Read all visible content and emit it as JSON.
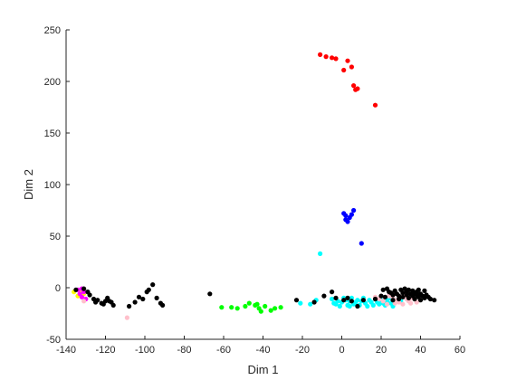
{
  "chart_data": {
    "type": "scatter",
    "title": "",
    "xlabel": "Dim 1",
    "ylabel": "Dim 2",
    "xlim": [
      -140,
      60
    ],
    "ylim": [
      -50,
      250
    ],
    "xticks": [
      "-140",
      "-120",
      "-100",
      "-80",
      "-60",
      "-40",
      "-20",
      "0",
      "20",
      "40",
      "60"
    ],
    "yticks": [
      "-50",
      "0",
      "50",
      "100",
      "150",
      "200",
      "250"
    ],
    "grid": false,
    "legend": "none",
    "series": [
      {
        "color": "#ff0000",
        "points": [
          [
            -11,
            226
          ],
          [
            -8,
            224
          ],
          [
            -5,
            223
          ],
          [
            -3,
            222
          ],
          [
            3,
            220
          ],
          [
            1,
            211
          ],
          [
            5,
            214
          ],
          [
            6,
            196
          ],
          [
            7,
            192
          ],
          [
            8,
            193
          ],
          [
            17,
            177
          ]
        ]
      },
      {
        "color": "#0000ff",
        "points": [
          [
            1,
            72
          ],
          [
            2,
            70
          ],
          [
            3,
            64
          ],
          [
            2,
            66
          ],
          [
            4,
            68
          ],
          [
            6,
            75
          ],
          [
            5,
            71
          ],
          [
            10,
            43
          ]
        ]
      },
      {
        "color": "#00ffff",
        "points": [
          [
            -11,
            33
          ],
          [
            -21,
            -15
          ],
          [
            -16,
            -16
          ],
          [
            -13,
            -12
          ],
          [
            -5,
            -11
          ],
          [
            -3,
            -16
          ],
          [
            -1,
            -18
          ],
          [
            0,
            -14
          ],
          [
            2,
            -12
          ],
          [
            3,
            -17
          ],
          [
            4,
            -13
          ],
          [
            5,
            -10
          ],
          [
            6,
            -16
          ],
          [
            7,
            -14
          ],
          [
            8,
            -12
          ],
          [
            9,
            -17
          ],
          [
            10,
            -13
          ],
          [
            11,
            -10
          ],
          [
            12,
            -15
          ],
          [
            13,
            -18
          ],
          [
            14,
            -12
          ],
          [
            15,
            -14
          ],
          [
            16,
            -17
          ],
          [
            17,
            -11
          ],
          [
            18,
            -14
          ],
          [
            19,
            -16
          ],
          [
            20,
            -12
          ],
          [
            21,
            -15
          ],
          [
            22,
            -17
          ],
          [
            23,
            -13
          ],
          [
            24,
            -10
          ],
          [
            25,
            -15
          ],
          [
            26,
            -18
          ],
          [
            27,
            -12
          ],
          [
            30,
            -13
          ],
          [
            33,
            -11
          ],
          [
            1,
            -10
          ],
          [
            -2,
            -13
          ],
          [
            -4,
            -15
          ],
          [
            4,
            -18
          ]
        ]
      },
      {
        "color": "#00ff00",
        "points": [
          [
            -61,
            -19
          ],
          [
            -56,
            -19
          ],
          [
            -53,
            -20
          ],
          [
            -49,
            -18
          ],
          [
            -47,
            -15
          ],
          [
            -44,
            -17
          ],
          [
            -43,
            -16
          ],
          [
            -42,
            -20
          ],
          [
            -41,
            -23
          ],
          [
            -39,
            -18
          ],
          [
            -36,
            -22
          ],
          [
            -34,
            -20
          ],
          [
            -31,
            -19
          ]
        ]
      },
      {
        "color": "#ffff00",
        "points": [
          [
            -136,
            -4
          ],
          [
            -134,
            -8
          ],
          [
            -132,
            -3
          ],
          [
            -131,
            -6
          ]
        ]
      },
      {
        "color": "#ff00ff",
        "points": [
          [
            -134,
            -2
          ],
          [
            -133,
            -6
          ],
          [
            -132,
            -9
          ],
          [
            -131,
            -4
          ],
          [
            -130,
            -11
          ],
          [
            -132,
            -1
          ]
        ]
      },
      {
        "color": "#ffc0cb",
        "points": [
          [
            -109,
            -29
          ],
          [
            -131,
            -13
          ],
          [
            17,
            -9
          ],
          [
            19,
            -11
          ],
          [
            21,
            -13
          ],
          [
            23,
            -16
          ],
          [
            24,
            -8
          ],
          [
            26,
            -10
          ],
          [
            28,
            -12
          ],
          [
            29,
            -14
          ],
          [
            30,
            -9
          ],
          [
            31,
            -16
          ],
          [
            33,
            -11
          ],
          [
            34,
            -13
          ],
          [
            35,
            -15
          ],
          [
            36,
            -10
          ],
          [
            37,
            -8
          ],
          [
            38,
            -14
          ],
          [
            32,
            -7
          ],
          [
            27,
            -15
          ]
        ]
      },
      {
        "color": "#000000",
        "points": [
          [
            -135,
            -2
          ],
          [
            -131,
            -1
          ],
          [
            -129,
            -4
          ],
          [
            -128,
            -7
          ],
          [
            -126,
            -11
          ],
          [
            -125,
            -14
          ],
          [
            -124,
            -12
          ],
          [
            -122,
            -15
          ],
          [
            -121,
            -16
          ],
          [
            -120,
            -13
          ],
          [
            -119,
            -10
          ],
          [
            -118,
            -13
          ],
          [
            -117,
            -14
          ],
          [
            -116,
            -17
          ],
          [
            -108,
            -18
          ],
          [
            -105,
            -14
          ],
          [
            -103,
            -9
          ],
          [
            -101,
            -11
          ],
          [
            -99,
            -4
          ],
          [
            -98,
            -2
          ],
          [
            -96,
            3
          ],
          [
            -94,
            -10
          ],
          [
            -92,
            -15
          ],
          [
            -91,
            -17
          ],
          [
            -67,
            -6
          ],
          [
            -23,
            -12
          ],
          [
            -14,
            -14
          ],
          [
            -9,
            -8
          ],
          [
            -5,
            -4
          ],
          [
            -3,
            -10
          ],
          [
            1,
            -12
          ],
          [
            3,
            -10
          ],
          [
            5,
            -13
          ],
          [
            8,
            -18
          ],
          [
            11,
            -12
          ],
          [
            17,
            -11
          ],
          [
            20,
            -8
          ],
          [
            22,
            -9
          ],
          [
            23,
            -1
          ],
          [
            24,
            -4
          ],
          [
            25,
            -5
          ],
          [
            26,
            -7
          ],
          [
            27,
            -3
          ],
          [
            28,
            -6
          ],
          [
            29,
            -8
          ],
          [
            30,
            -2
          ],
          [
            31,
            -5
          ],
          [
            31,
            -9
          ],
          [
            32,
            -1
          ],
          [
            33,
            -4
          ],
          [
            33,
            -7
          ],
          [
            34,
            -2
          ],
          [
            34,
            -10
          ],
          [
            35,
            -6
          ],
          [
            36,
            -3
          ],
          [
            36,
            -8
          ],
          [
            37,
            -5
          ],
          [
            37,
            -11
          ],
          [
            38,
            -7
          ],
          [
            38,
            -4
          ],
          [
            39,
            -9
          ],
          [
            39,
            -2
          ],
          [
            40,
            -6
          ],
          [
            40,
            -12
          ],
          [
            41,
            -8
          ],
          [
            42,
            -3
          ],
          [
            42,
            -10
          ],
          [
            43,
            -7
          ],
          [
            44,
            -9
          ],
          [
            45,
            -11
          ],
          [
            47,
            -12
          ],
          [
            21,
            -2
          ],
          [
            26,
            -12
          ],
          [
            29,
            -11
          ]
        ]
      }
    ]
  }
}
